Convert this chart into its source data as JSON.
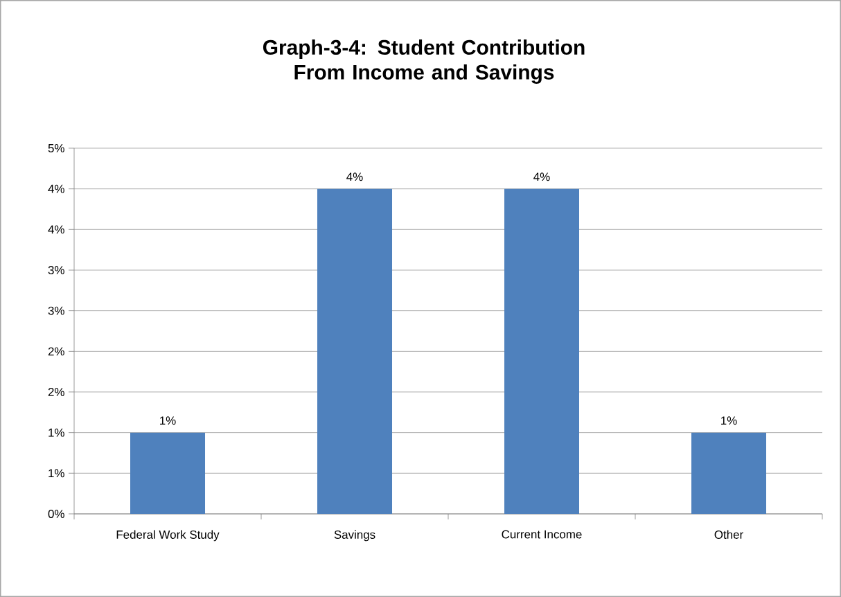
{
  "chart_data": {
    "type": "bar",
    "title": "Graph-3-4: Student Contribution From Income and Savings",
    "categories": [
      "Federal Work Study",
      "Savings",
      "Current Income",
      "Other"
    ],
    "values": [
      1.111,
      4.444,
      4.444,
      1.111
    ],
    "value_labels": [
      "1%",
      "4%",
      "4%",
      "1%"
    ],
    "color": "#4f81bd",
    "ylim": [
      0,
      5
    ],
    "yticks": [
      {
        "value": 0,
        "label": "0%"
      },
      {
        "value": 0.556,
        "label": "1%"
      },
      {
        "value": 1.111,
        "label": "1%"
      },
      {
        "value": 1.667,
        "label": "2%"
      },
      {
        "value": 2.222,
        "label": "2%"
      },
      {
        "value": 2.778,
        "label": "3%"
      },
      {
        "value": 3.333,
        "label": "3%"
      },
      {
        "value": 3.889,
        "label": "4%"
      },
      {
        "value": 4.444,
        "label": "4%"
      },
      {
        "value": 5,
        "label": "5%"
      }
    ],
    "grid": "y"
  }
}
